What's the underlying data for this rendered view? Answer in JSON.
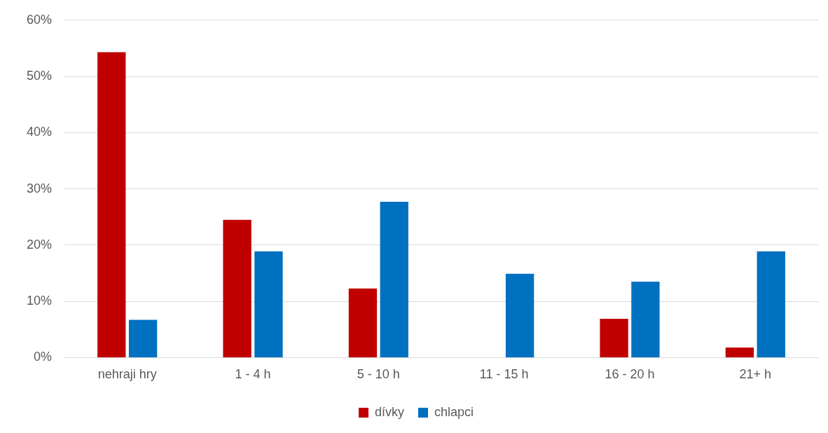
{
  "chart_data": {
    "type": "bar",
    "categories": [
      "nehraji hry",
      "1 - 4 h",
      "5 - 10 h",
      "11 - 15 h",
      "16 - 20 h",
      "21+ h"
    ],
    "series": [
      {
        "name": "dívky",
        "color": "#c00000",
        "values": [
          54.3,
          24.5,
          12.3,
          0,
          6.9,
          1.8
        ]
      },
      {
        "name": "chlapci",
        "color": "#0070c0",
        "values": [
          6.7,
          18.9,
          27.7,
          14.9,
          13.5,
          18.9
        ]
      }
    ],
    "ylim": [
      0,
      60
    ],
    "yticks": [
      {
        "value": 0,
        "label": "0%"
      },
      {
        "value": 10,
        "label": "10%"
      },
      {
        "value": 20,
        "label": "20%"
      },
      {
        "value": 30,
        "label": "30%"
      },
      {
        "value": 40,
        "label": "40%"
      },
      {
        "value": 50,
        "label": "50%"
      },
      {
        "value": 60,
        "label": "60%"
      }
    ],
    "grid": "y",
    "legend": "bottom"
  }
}
